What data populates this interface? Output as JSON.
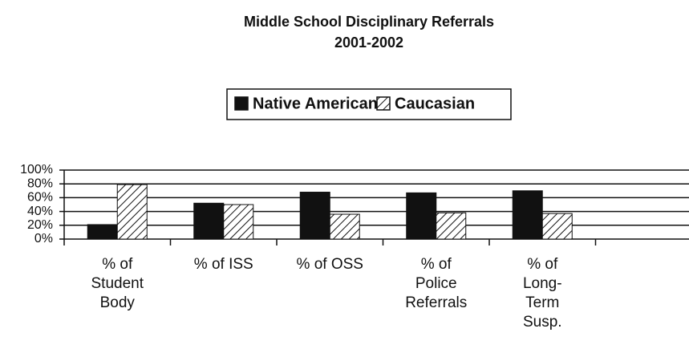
{
  "chart_data": {
    "type": "bar",
    "title": "Middle School Disciplinary Referrals",
    "subtitle": "2001-2002",
    "categories": [
      "% of\nStudent\nBody",
      "% of ISS",
      "% of OSS",
      "% of\nPolice\nReferrals",
      "% of\nLong-\nTerm\nSusp.",
      null
    ],
    "series": [
      {
        "name": "Native American",
        "color": "#111111",
        "pattern": "solid",
        "values": [
          21,
          52,
          68,
          67,
          70,
          null
        ]
      },
      {
        "name": "Caucasian",
        "color": "#111111",
        "pattern": "hatch",
        "values": [
          79,
          50,
          36,
          38,
          37,
          null
        ]
      }
    ],
    "ylim": [
      0,
      100
    ],
    "yticks": [
      {
        "value": 0,
        "label": "0%"
      },
      {
        "value": 20,
        "label": "20%"
      },
      {
        "value": 40,
        "label": "40%"
      },
      {
        "value": 60,
        "label": "60%"
      },
      {
        "value": 80,
        "label": "80%"
      },
      {
        "value": 100,
        "label": "100%"
      }
    ],
    "grid": true,
    "legend": "top"
  }
}
